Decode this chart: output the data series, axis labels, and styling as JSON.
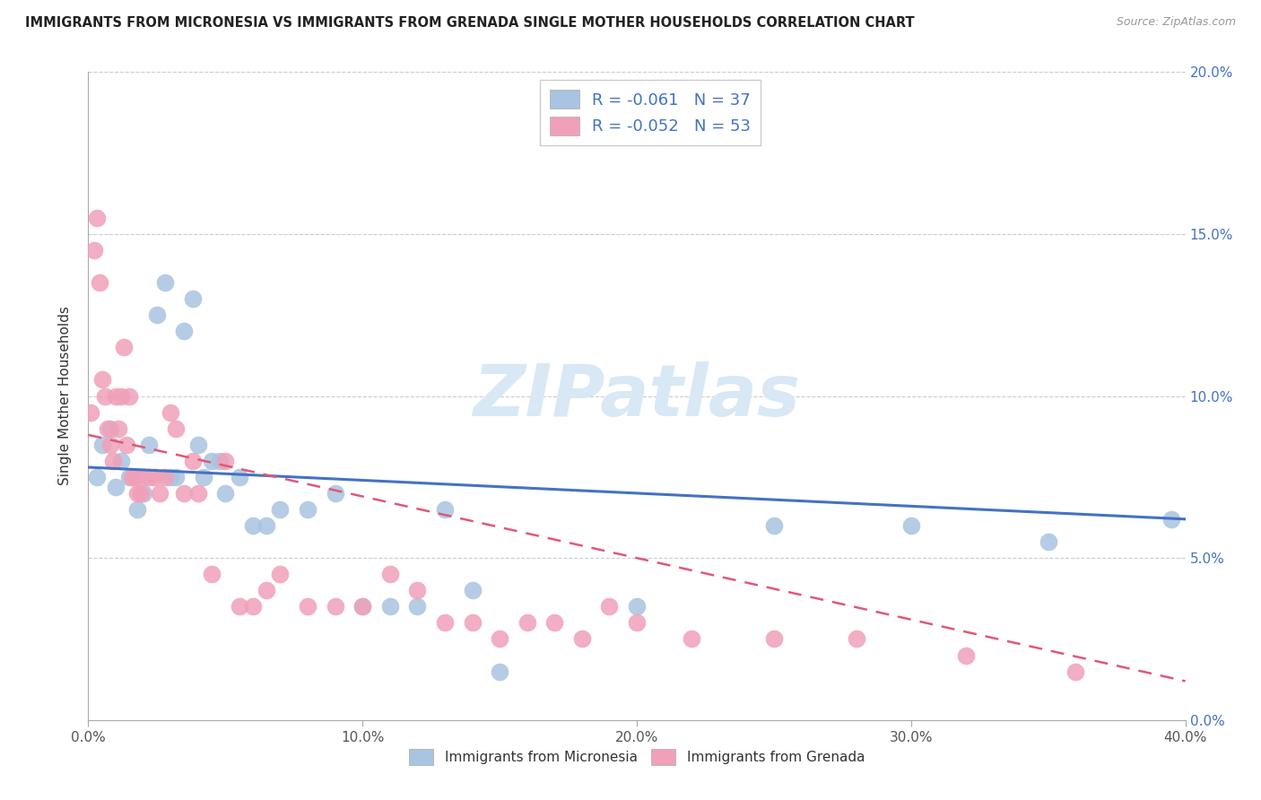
{
  "title": "IMMIGRANTS FROM MICRONESIA VS IMMIGRANTS FROM GRENADA SINGLE MOTHER HOUSEHOLDS CORRELATION CHART",
  "source": "Source: ZipAtlas.com",
  "ylabel": "Single Mother Households",
  "right_yticks": [
    "0.0%",
    "5.0%",
    "10.0%",
    "15.0%",
    "20.0%"
  ],
  "right_ytick_vals": [
    0.0,
    5.0,
    10.0,
    15.0,
    20.0
  ],
  "legend_blue_label": "Immigrants from Micronesia",
  "legend_pink_label": "Immigrants from Grenada",
  "legend_blue_r": "-0.061",
  "legend_blue_n": "37",
  "legend_pink_r": "-0.052",
  "legend_pink_n": "53",
  "blue_color": "#a8c4e0",
  "pink_color": "#f0a0b8",
  "blue_line_color": "#4472c4",
  "pink_line_color": "#e05878",
  "accent_blue": "#4472c4",
  "watermark_color": "#d8e8f5",
  "blue_scatter_x": [
    0.3,
    0.5,
    0.8,
    1.0,
    1.2,
    1.5,
    1.8,
    2.0,
    2.2,
    2.5,
    2.8,
    3.0,
    3.2,
    3.5,
    3.8,
    4.0,
    4.2,
    4.5,
    4.8,
    5.0,
    5.5,
    6.0,
    6.5,
    7.0,
    8.0,
    9.0,
    10.0,
    11.0,
    12.0,
    13.0,
    14.0,
    15.0,
    20.0,
    25.0,
    30.0,
    35.0,
    39.5
  ],
  "blue_scatter_y": [
    7.5,
    8.5,
    9.0,
    7.2,
    8.0,
    7.5,
    6.5,
    7.0,
    8.5,
    12.5,
    13.5,
    7.5,
    7.5,
    12.0,
    13.0,
    8.5,
    7.5,
    8.0,
    8.0,
    7.0,
    7.5,
    6.0,
    6.0,
    6.5,
    6.5,
    7.0,
    3.5,
    3.5,
    3.5,
    6.5,
    4.0,
    1.5,
    3.5,
    6.0,
    6.0,
    5.5,
    6.2
  ],
  "pink_scatter_x": [
    0.1,
    0.2,
    0.3,
    0.4,
    0.5,
    0.6,
    0.7,
    0.8,
    0.9,
    1.0,
    1.1,
    1.2,
    1.3,
    1.4,
    1.5,
    1.6,
    1.7,
    1.8,
    1.9,
    2.0,
    2.2,
    2.4,
    2.6,
    2.8,
    3.0,
    3.2,
    3.5,
    3.8,
    4.0,
    4.5,
    5.0,
    5.5,
    6.0,
    6.5,
    7.0,
    8.0,
    9.0,
    10.0,
    11.0,
    12.0,
    13.0,
    14.0,
    15.0,
    16.0,
    17.0,
    18.0,
    19.0,
    20.0,
    22.0,
    25.0,
    28.0,
    32.0,
    36.0
  ],
  "pink_scatter_y": [
    9.5,
    14.5,
    15.5,
    13.5,
    10.5,
    10.0,
    9.0,
    8.5,
    8.0,
    10.0,
    9.0,
    10.0,
    11.5,
    8.5,
    10.0,
    7.5,
    7.5,
    7.0,
    7.0,
    7.5,
    7.5,
    7.5,
    7.0,
    7.5,
    9.5,
    9.0,
    7.0,
    8.0,
    7.0,
    4.5,
    8.0,
    3.5,
    3.5,
    4.0,
    4.5,
    3.5,
    3.5,
    3.5,
    4.5,
    4.0,
    3.0,
    3.0,
    2.5,
    3.0,
    3.0,
    2.5,
    3.5,
    3.0,
    2.5,
    2.5,
    2.5,
    2.0,
    1.5
  ],
  "xlim": [
    0,
    40
  ],
  "ylim": [
    0,
    20
  ],
  "blue_trendline_x": [
    0,
    40
  ],
  "blue_trendline_y": [
    7.8,
    6.2
  ],
  "pink_trendline_x": [
    0,
    40
  ],
  "pink_trendline_y": [
    8.8,
    1.2
  ]
}
